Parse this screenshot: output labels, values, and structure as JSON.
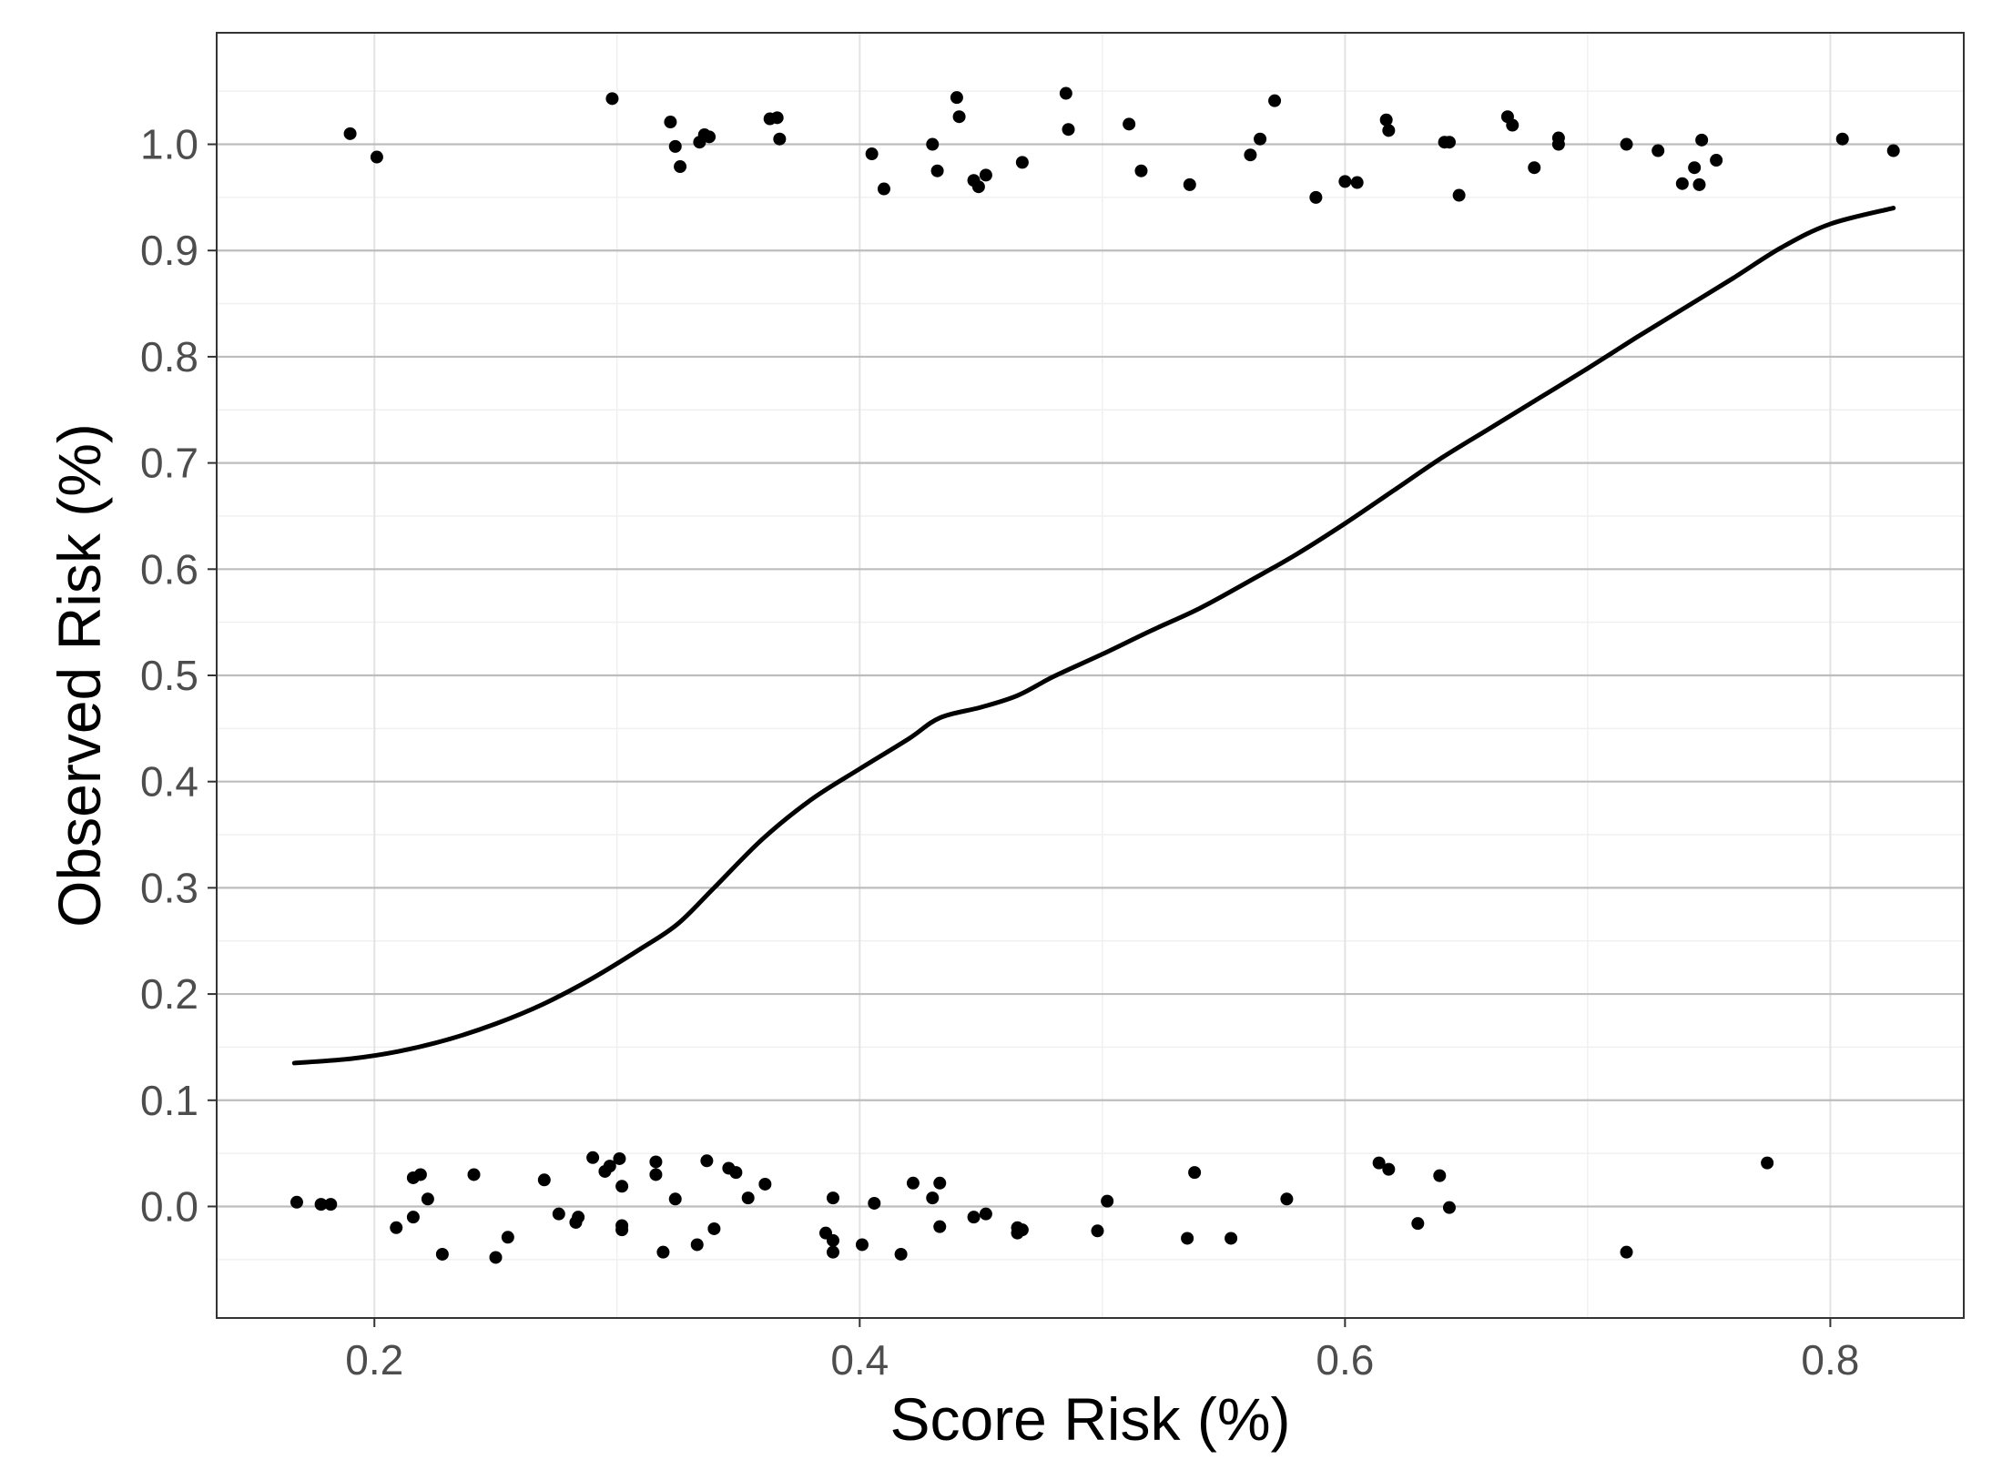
{
  "chart_data": {
    "type": "scatter",
    "title": "",
    "xlabel": "Score Risk (%)",
    "ylabel": "Observed Risk (%)",
    "xlim": [
      0.135,
      0.855
    ],
    "ylim": [
      -0.105,
      1.105
    ],
    "x_ticks": [
      0.2,
      0.4,
      0.6,
      0.8
    ],
    "x_tick_labels": [
      "0.2",
      "0.4",
      "0.6",
      "0.8"
    ],
    "y_ticks": [
      0.0,
      0.1,
      0.2,
      0.3,
      0.4,
      0.5,
      0.6,
      0.7,
      0.8,
      0.9,
      1.0
    ],
    "y_tick_labels": [
      "0.0",
      "0.1",
      "0.2",
      "0.3",
      "0.4",
      "0.5",
      "0.6",
      "0.7",
      "0.8",
      "0.9",
      "1.0"
    ],
    "grid": true,
    "theme": "bw",
    "series": [
      {
        "kind": "points",
        "color": "#000000",
        "points": [
          [
            0.19,
            1.01
          ],
          [
            0.201,
            0.988
          ],
          [
            0.298,
            1.043
          ],
          [
            0.322,
            1.021
          ],
          [
            0.324,
            0.998
          ],
          [
            0.326,
            0.979
          ],
          [
            0.334,
            1.002
          ],
          [
            0.336,
            1.009
          ],
          [
            0.338,
            1.007
          ],
          [
            0.363,
            1.024
          ],
          [
            0.366,
            1.025
          ],
          [
            0.367,
            1.005
          ],
          [
            0.405,
            0.991
          ],
          [
            0.41,
            0.958
          ],
          [
            0.43,
            1.0
          ],
          [
            0.432,
            0.975
          ],
          [
            0.44,
            1.044
          ],
          [
            0.441,
            1.026
          ],
          [
            0.447,
            0.966
          ],
          [
            0.449,
            0.96
          ],
          [
            0.452,
            0.971
          ],
          [
            0.467,
            0.983
          ],
          [
            0.485,
            1.048
          ],
          [
            0.486,
            1.014
          ],
          [
            0.511,
            1.019
          ],
          [
            0.516,
            0.975
          ],
          [
            0.536,
            0.962
          ],
          [
            0.561,
            0.99
          ],
          [
            0.565,
            1.005
          ],
          [
            0.571,
            1.041
          ],
          [
            0.588,
            0.95
          ],
          [
            0.6,
            0.965
          ],
          [
            0.605,
            0.964
          ],
          [
            0.617,
            1.023
          ],
          [
            0.618,
            1.013
          ],
          [
            0.641,
            1.002
          ],
          [
            0.643,
            1.002
          ],
          [
            0.647,
            0.952
          ],
          [
            0.667,
            1.026
          ],
          [
            0.669,
            1.018
          ],
          [
            0.678,
            0.978
          ],
          [
            0.688,
            1.006
          ],
          [
            0.688,
            1.0
          ],
          [
            0.716,
            1.0
          ],
          [
            0.729,
            0.994
          ],
          [
            0.739,
            0.963
          ],
          [
            0.744,
            0.978
          ],
          [
            0.746,
            0.962
          ],
          [
            0.747,
            1.004
          ],
          [
            0.753,
            0.985
          ],
          [
            0.805,
            1.005
          ],
          [
            0.826,
            0.994
          ],
          [
            0.168,
            0.004
          ],
          [
            0.178,
            0.002
          ],
          [
            0.182,
            0.002
          ],
          [
            0.209,
            -0.02
          ],
          [
            0.216,
            -0.01
          ],
          [
            0.216,
            0.027
          ],
          [
            0.219,
            0.03
          ],
          [
            0.222,
            0.007
          ],
          [
            0.228,
            -0.045
          ],
          [
            0.241,
            0.03
          ],
          [
            0.25,
            -0.048
          ],
          [
            0.255,
            -0.029
          ],
          [
            0.27,
            0.025
          ],
          [
            0.276,
            -0.007
          ],
          [
            0.283,
            -0.015
          ],
          [
            0.284,
            -0.01
          ],
          [
            0.29,
            0.046
          ],
          [
            0.295,
            0.033
          ],
          [
            0.297,
            0.038
          ],
          [
            0.301,
            0.045
          ],
          [
            0.302,
            -0.018
          ],
          [
            0.302,
            -0.022
          ],
          [
            0.302,
            0.019
          ],
          [
            0.316,
            0.042
          ],
          [
            0.316,
            0.03
          ],
          [
            0.319,
            -0.043
          ],
          [
            0.324,
            0.007
          ],
          [
            0.333,
            -0.036
          ],
          [
            0.337,
            0.043
          ],
          [
            0.34,
            -0.021
          ],
          [
            0.346,
            0.036
          ],
          [
            0.349,
            0.032
          ],
          [
            0.354,
            0.008
          ],
          [
            0.361,
            0.021
          ],
          [
            0.386,
            -0.025
          ],
          [
            0.389,
            -0.032
          ],
          [
            0.389,
            -0.043
          ],
          [
            0.389,
            0.008
          ],
          [
            0.401,
            -0.036
          ],
          [
            0.406,
            0.003
          ],
          [
            0.417,
            -0.045
          ],
          [
            0.422,
            0.022
          ],
          [
            0.43,
            0.008
          ],
          [
            0.433,
            0.022
          ],
          [
            0.433,
            -0.019
          ],
          [
            0.447,
            -0.01
          ],
          [
            0.452,
            -0.007
          ],
          [
            0.465,
            -0.025
          ],
          [
            0.465,
            -0.02
          ],
          [
            0.467,
            -0.022
          ],
          [
            0.498,
            -0.023
          ],
          [
            0.502,
            0.005
          ],
          [
            0.535,
            -0.03
          ],
          [
            0.538,
            0.032
          ],
          [
            0.553,
            -0.03
          ],
          [
            0.576,
            0.007
          ],
          [
            0.614,
            0.041
          ],
          [
            0.618,
            0.035
          ],
          [
            0.63,
            -0.016
          ],
          [
            0.639,
            0.029
          ],
          [
            0.643,
            -0.001
          ],
          [
            0.716,
            -0.043
          ],
          [
            0.774,
            0.041
          ]
        ]
      },
      {
        "kind": "smooth",
        "color": "#000000",
        "points": [
          [
            0.167,
            0.135
          ],
          [
            0.19,
            0.139
          ],
          [
            0.21,
            0.146
          ],
          [
            0.23,
            0.157
          ],
          [
            0.25,
            0.172
          ],
          [
            0.27,
            0.191
          ],
          [
            0.29,
            0.215
          ],
          [
            0.31,
            0.243
          ],
          [
            0.325,
            0.266
          ],
          [
            0.34,
            0.3
          ],
          [
            0.36,
            0.346
          ],
          [
            0.38,
            0.383
          ],
          [
            0.4,
            0.412
          ],
          [
            0.42,
            0.44
          ],
          [
            0.433,
            0.46
          ],
          [
            0.45,
            0.47
          ],
          [
            0.465,
            0.481
          ],
          [
            0.48,
            0.499
          ],
          [
            0.5,
            0.52
          ],
          [
            0.52,
            0.542
          ],
          [
            0.54,
            0.563
          ],
          [
            0.56,
            0.588
          ],
          [
            0.58,
            0.614
          ],
          [
            0.6,
            0.643
          ],
          [
            0.62,
            0.674
          ],
          [
            0.64,
            0.705
          ],
          [
            0.66,
            0.733
          ],
          [
            0.68,
            0.761
          ],
          [
            0.7,
            0.789
          ],
          [
            0.72,
            0.818
          ],
          [
            0.74,
            0.846
          ],
          [
            0.76,
            0.874
          ],
          [
            0.78,
            0.903
          ],
          [
            0.8,
            0.925
          ],
          [
            0.826,
            0.94
          ]
        ]
      }
    ]
  }
}
